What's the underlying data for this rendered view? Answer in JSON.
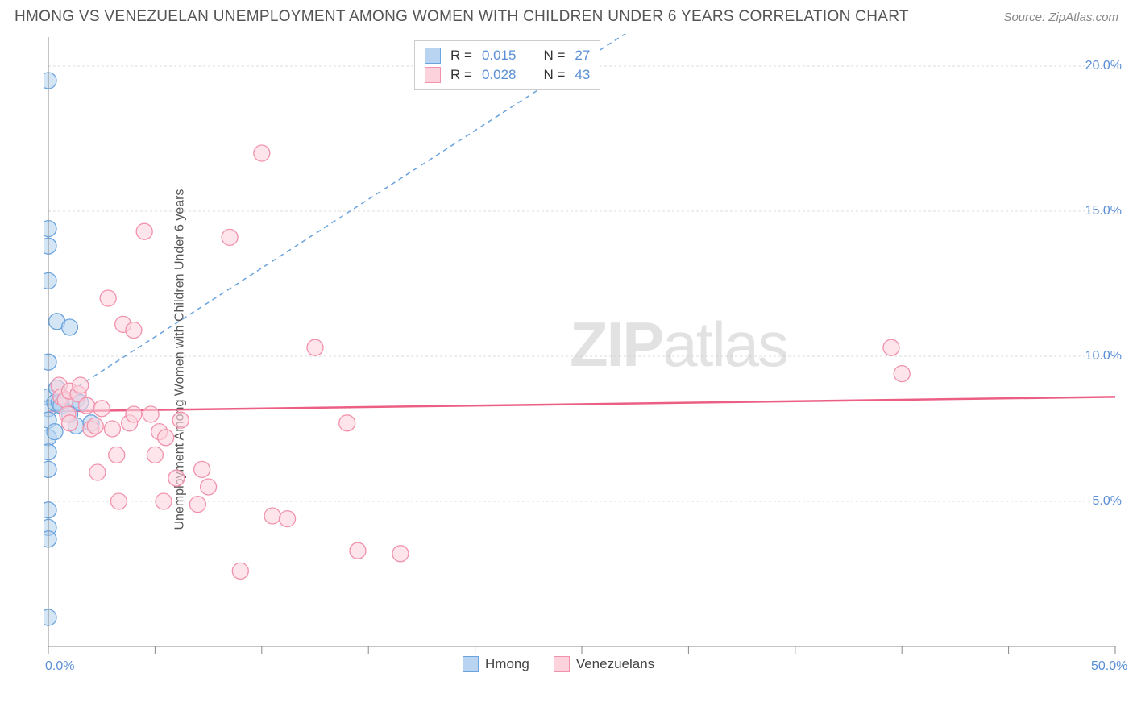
{
  "header": {
    "title": "HMONG VS VENEZUELAN UNEMPLOYMENT AMONG WOMEN WITH CHILDREN UNDER 6 YEARS CORRELATION CHART",
    "source": "Source: ZipAtlas.com"
  },
  "chart": {
    "type": "scatter",
    "y_label": "Unemployment Among Women with Children Under 6 years",
    "background_color": "#ffffff",
    "grid_color": "#dddddd",
    "axis_color": "#888888",
    "xlim": [
      0,
      50
    ],
    "ylim": [
      0,
      21
    ],
    "x_ticks": [
      0,
      5,
      10,
      15,
      20,
      25,
      30,
      35,
      40,
      45,
      50
    ],
    "x_tick_labels": {
      "0": "0.0%",
      "50": "50.0%"
    },
    "y_ticks": [
      5,
      10,
      15,
      20
    ],
    "y_tick_labels": {
      "5": "5.0%",
      "10": "10.0%",
      "15": "15.0%",
      "20": "20.0%"
    },
    "tick_label_color": "#5a8fd6",
    "tick_fontsize": 16,
    "watermark": {
      "text_bold": "ZIP",
      "text_normal": "atlas",
      "color": "#cccccc"
    },
    "series": [
      {
        "name": "Hmong",
        "fill": "#b8d4f0",
        "stroke": "#6aa3de",
        "marker_radius": 10,
        "trendline_color": "#6aa3de",
        "trendline_dash": "6,5",
        "trendline_width": 1.5,
        "trend_y0": 8.3,
        "trend_y1": 32.0,
        "points": [
          [
            0.0,
            19.5
          ],
          [
            0.0,
            14.4
          ],
          [
            0.0,
            13.8
          ],
          [
            0.0,
            12.6
          ],
          [
            0.0,
            9.8
          ],
          [
            0.0,
            8.6
          ],
          [
            0.0,
            8.2
          ],
          [
            0.0,
            7.8
          ],
          [
            0.0,
            7.2
          ],
          [
            0.0,
            6.7
          ],
          [
            0.0,
            6.1
          ],
          [
            0.0,
            4.7
          ],
          [
            0.0,
            4.1
          ],
          [
            0.0,
            3.7
          ],
          [
            0.0,
            1.0
          ],
          [
            0.3,
            8.4
          ],
          [
            0.3,
            7.4
          ],
          [
            0.4,
            11.2
          ],
          [
            0.4,
            8.9
          ],
          [
            0.5,
            8.4
          ],
          [
            0.6,
            8.3
          ],
          [
            1.0,
            11.0
          ],
          [
            1.0,
            8.0
          ],
          [
            1.3,
            8.5
          ],
          [
            1.3,
            7.6
          ],
          [
            1.5,
            8.4
          ],
          [
            2.0,
            7.7
          ]
        ]
      },
      {
        "name": "Venezuelans",
        "fill": "#fcd3dd",
        "stroke": "#f291ab",
        "marker_radius": 10,
        "trendline_color": "#ec5f85",
        "trendline_dash": "none",
        "trendline_width": 2.5,
        "trend_y0": 8.1,
        "trend_y1": 8.6,
        "points": [
          [
            0.5,
            9.0
          ],
          [
            0.6,
            8.6
          ],
          [
            0.8,
            8.5
          ],
          [
            0.9,
            8.0
          ],
          [
            1.0,
            8.8
          ],
          [
            1.0,
            7.7
          ],
          [
            1.4,
            8.7
          ],
          [
            1.5,
            9.0
          ],
          [
            1.8,
            8.3
          ],
          [
            2.0,
            7.5
          ],
          [
            2.2,
            7.6
          ],
          [
            2.3,
            6.0
          ],
          [
            2.5,
            8.2
          ],
          [
            2.8,
            12.0
          ],
          [
            3.0,
            7.5
          ],
          [
            3.2,
            6.6
          ],
          [
            3.3,
            5.0
          ],
          [
            3.5,
            11.1
          ],
          [
            3.8,
            7.7
          ],
          [
            4.0,
            10.9
          ],
          [
            4.5,
            14.3
          ],
          [
            4.8,
            8.0
          ],
          [
            5.0,
            6.6
          ],
          [
            5.2,
            7.4
          ],
          [
            5.4,
            5.0
          ],
          [
            5.5,
            7.2
          ],
          [
            6.0,
            5.8
          ],
          [
            6.2,
            7.8
          ],
          [
            7.0,
            4.9
          ],
          [
            7.2,
            6.1
          ],
          [
            7.5,
            5.5
          ],
          [
            8.5,
            14.1
          ],
          [
            9.0,
            2.6
          ],
          [
            10.0,
            17.0
          ],
          [
            10.5,
            4.5
          ],
          [
            11.2,
            4.4
          ],
          [
            12.5,
            10.3
          ],
          [
            14.0,
            7.7
          ],
          [
            14.5,
            3.3
          ],
          [
            16.5,
            3.2
          ],
          [
            39.5,
            10.3
          ],
          [
            40.0,
            9.4
          ],
          [
            4.0,
            8.0
          ]
        ]
      }
    ],
    "legend_top": {
      "r_label": "R =",
      "n_label": "N =",
      "rows": [
        {
          "swatch_fill": "#b8d4f0",
          "swatch_stroke": "#6aa3de",
          "r": "0.015",
          "n": "27"
        },
        {
          "swatch_fill": "#fcd3dd",
          "swatch_stroke": "#f291ab",
          "r": "0.028",
          "n": "43"
        }
      ]
    },
    "legend_bottom": [
      {
        "swatch_fill": "#b8d4f0",
        "swatch_stroke": "#6aa3de",
        "label": "Hmong"
      },
      {
        "swatch_fill": "#fcd3dd",
        "swatch_stroke": "#f291ab",
        "label": "Venezuelans"
      }
    ]
  }
}
